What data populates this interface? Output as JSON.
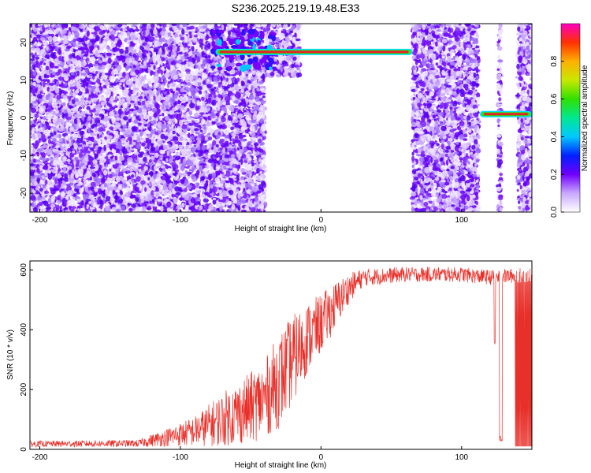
{
  "title": "S236.2025.219.19.48.E33",
  "colors": {
    "snr_line": "#e8302a",
    "scatter": "#6a00ff",
    "band_core": "#e8222a",
    "band_edge": "#00e0ff"
  },
  "chart_data": [
    {
      "type": "heatmap",
      "name": "spectrogram",
      "xlabel": "Height of straight line (km)",
      "ylabel": "Frequency (Hz)",
      "xlim": [
        -207,
        150
      ],
      "ylim": [
        -25,
        25
      ],
      "xticks": [
        -200,
        -100,
        0,
        100
      ],
      "yticks": [
        -20,
        -10,
        0,
        10,
        20
      ],
      "colorbar": {
        "label": "Normalized spectral amplitude",
        "range": [
          0,
          1
        ],
        "ticks": [
          0.0,
          0.2,
          0.4,
          0.6,
          0.8
        ]
      },
      "regions": [
        {
          "x": [
            -207,
            -80
          ],
          "f": [
            -25,
            25
          ],
          "amplitude": "noise"
        },
        {
          "x": [
            -80,
            -15
          ],
          "f": [
            11,
            25
          ],
          "amplitude": "noise"
        },
        {
          "x": [
            -80,
            -40
          ],
          "f": [
            -25,
            11
          ],
          "amplitude": "noise"
        },
        {
          "x": [
            65,
            112
          ],
          "f": [
            -25,
            25
          ],
          "amplitude": "noise"
        },
        {
          "x": [
            126,
            128
          ],
          "f": [
            -25,
            25
          ],
          "amplitude": "noise"
        },
        {
          "x": [
            140,
            150
          ],
          "f": [
            -25,
            25
          ],
          "amplitude": "noise"
        }
      ],
      "signal_bands": [
        {
          "x": [
            -75,
            65
          ],
          "frequency": 17.5,
          "amplitude": 1.0
        },
        {
          "x": [
            113,
            150
          ],
          "frequency": 1.0,
          "amplitude": 1.0
        }
      ]
    },
    {
      "type": "line",
      "name": "snr",
      "xlabel": "Height of straight line (km)",
      "ylabel": "SNR (10 * v/v)",
      "xlim": [
        -207,
        150
      ],
      "ylim": [
        0,
        630
      ],
      "xticks": [
        -200,
        -100,
        0,
        100
      ],
      "yticks": [
        0,
        200,
        400,
        600
      ],
      "envelope": [
        {
          "x": -207,
          "mean": 18,
          "spread": 10
        },
        {
          "x": -130,
          "mean": 20,
          "spread": 12
        },
        {
          "x": -110,
          "mean": 40,
          "spread": 30
        },
        {
          "x": -90,
          "mean": 60,
          "spread": 50
        },
        {
          "x": -70,
          "mean": 100,
          "spread": 90
        },
        {
          "x": -50,
          "mean": 140,
          "spread": 120
        },
        {
          "x": -40,
          "mean": 170,
          "spread": 130
        },
        {
          "x": -30,
          "mean": 230,
          "spread": 160
        },
        {
          "x": -20,
          "mean": 300,
          "spread": 150
        },
        {
          "x": -10,
          "mean": 370,
          "spread": 120
        },
        {
          "x": 0,
          "mean": 420,
          "spread": 100
        },
        {
          "x": 10,
          "mean": 480,
          "spread": 80
        },
        {
          "x": 20,
          "mean": 540,
          "spread": 50
        },
        {
          "x": 30,
          "mean": 575,
          "spread": 30
        },
        {
          "x": 60,
          "mean": 585,
          "spread": 25
        },
        {
          "x": 100,
          "mean": 585,
          "spread": 25
        },
        {
          "x": 120,
          "mean": 575,
          "spread": 25
        },
        {
          "x": 150,
          "mean": 585,
          "spread": 25
        }
      ],
      "dropouts": [
        {
          "x": [
            123,
            124
          ],
          "value": 350
        },
        {
          "x": [
            127,
            129
          ],
          "value": 25
        },
        {
          "x": [
            138,
            150
          ],
          "value": 10
        }
      ]
    }
  ]
}
